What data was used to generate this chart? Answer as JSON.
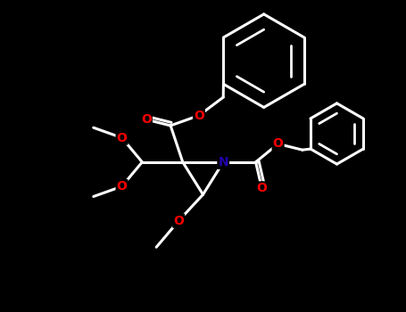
{
  "background_color": "#000000",
  "bond_color": "#ffffff",
  "O_color": "#ff0000",
  "N_color": "#2200aa",
  "line_width": 2.2,
  "font_size": 10,
  "xlim": [
    0,
    10
  ],
  "ylim": [
    0,
    7.7
  ]
}
